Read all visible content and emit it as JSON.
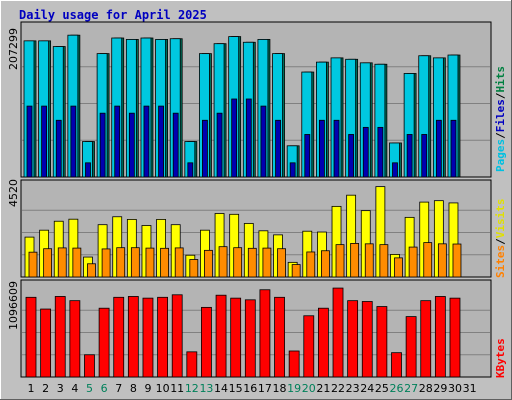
{
  "title": "Daily usage for April 2025",
  "colors": {
    "background": "#c0c0c0",
    "panel": "#b4b4b4",
    "grid": "#808080",
    "title": "#0000c0",
    "hits": "#00c8e0",
    "files": "#006e5a",
    "pages": "#0000b0",
    "visits": "#ffff00",
    "sites": "#ff8c00",
    "kbytes": "#ff0000",
    "weekday_label": "#000000",
    "weekend_label": "#00805a"
  },
  "legends": {
    "top": [
      "Pages",
      "Files",
      "Hits"
    ],
    "top_colors": [
      "#00c0e0",
      "#0000c0",
      "#008040"
    ],
    "middle": [
      "Sites",
      "Visits"
    ],
    "middle_colors": [
      "#ff8000",
      "#e0e000"
    ],
    "bottom": [
      "KBytes"
    ],
    "bottom_colors": [
      "#ff0000"
    ]
  },
  "chart_data": [
    {
      "type": "bar",
      "name": "hits-files-pages",
      "categories": [
        "1",
        "2",
        "3",
        "4",
        "5",
        "6",
        "7",
        "8",
        "9",
        "10",
        "11",
        "12",
        "13",
        "14",
        "15",
        "16",
        "17",
        "18",
        "19",
        "20",
        "21",
        "22",
        "23",
        "24",
        "25",
        "26",
        "27",
        "28",
        "29",
        "30",
        "31"
      ],
      "max_label": "207299",
      "ylim": [
        0,
        207299
      ],
      "series": [
        {
          "name": "Hits",
          "values": [
            192000,
            192000,
            184000,
            200000,
            50000,
            174000,
            196000,
            194000,
            196000,
            194000,
            195000,
            50000,
            174000,
            188000,
            198000,
            190000,
            194000,
            174000,
            44000,
            148000,
            162000,
            168000,
            166000,
            161000,
            159000,
            48000,
            146000,
            171000,
            168000,
            172000,
            0
          ]
        },
        {
          "name": "Files",
          "values": [
            192000,
            192000,
            184000,
            200000,
            50000,
            174000,
            196000,
            194000,
            196000,
            194000,
            195000,
            50000,
            174000,
            188000,
            198000,
            190000,
            194000,
            174000,
            44000,
            148000,
            162000,
            168000,
            166000,
            161000,
            159000,
            48000,
            146000,
            171000,
            168000,
            172000,
            0
          ]
        },
        {
          "name": "Pages",
          "values": [
            100000,
            100000,
            80000,
            100000,
            20000,
            90000,
            100000,
            90000,
            100000,
            100000,
            90000,
            20000,
            80000,
            90000,
            110000,
            110000,
            100000,
            80000,
            20000,
            60000,
            80000,
            80000,
            60000,
            70000,
            70000,
            20000,
            60000,
            60000,
            80000,
            80000,
            0
          ]
        }
      ]
    },
    {
      "type": "bar",
      "name": "visits-sites",
      "categories": [
        "1",
        "2",
        "3",
        "4",
        "5",
        "6",
        "7",
        "8",
        "9",
        "10",
        "11",
        "12",
        "13",
        "14",
        "15",
        "16",
        "17",
        "18",
        "19",
        "20",
        "21",
        "22",
        "23",
        "24",
        "25",
        "26",
        "27",
        "28",
        "29",
        "30",
        "31"
      ],
      "max_label": "4520",
      "ylim": [
        0,
        4520
      ],
      "series": [
        {
          "name": "Visits",
          "values": [
            1960,
            2300,
            2740,
            2840,
            980,
            2570,
            2960,
            2830,
            2530,
            2830,
            2570,
            1070,
            2300,
            3120,
            3080,
            2630,
            2270,
            2070,
            720,
            2250,
            2210,
            3470,
            4020,
            3260,
            4440,
            1110,
            2930,
            3680,
            3750,
            3640,
            0
          ]
        },
        {
          "name": "Sites",
          "values": [
            1220,
            1390,
            1430,
            1420,
            650,
            1380,
            1440,
            1440,
            1420,
            1410,
            1430,
            860,
            1310,
            1490,
            1440,
            1410,
            1420,
            1390,
            610,
            1230,
            1290,
            1590,
            1650,
            1630,
            1590,
            940,
            1470,
            1690,
            1630,
            1620,
            0
          ]
        }
      ]
    },
    {
      "type": "bar",
      "name": "kbytes",
      "categories": [
        "1",
        "2",
        "3",
        "4",
        "5",
        "6",
        "7",
        "8",
        "9",
        "10",
        "11",
        "12",
        "13",
        "14",
        "15",
        "16",
        "17",
        "18",
        "19",
        "20",
        "21",
        "22",
        "23",
        "24",
        "25",
        "26",
        "27",
        "28",
        "29",
        "30",
        "31"
      ],
      "max_label": "1096609",
      "ylim": [
        0,
        1096609
      ],
      "series": [
        {
          "name": "KBytes",
          "values": [
            950000,
            810000,
            960000,
            910000,
            265000,
            820000,
            950000,
            960000,
            940000,
            950000,
            980000,
            300000,
            830000,
            975000,
            940000,
            920000,
            1040000,
            950000,
            310000,
            730000,
            820000,
            1060000,
            910000,
            900000,
            840000,
            290000,
            720000,
            910000,
            960000,
            940000,
            0
          ]
        }
      ]
    }
  ]
}
